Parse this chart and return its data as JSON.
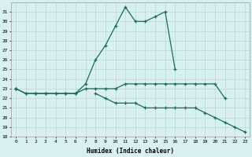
{
  "x": [
    0,
    1,
    2,
    3,
    4,
    5,
    6,
    7,
    8,
    9,
    10,
    11,
    12,
    13,
    14,
    15,
    16,
    17,
    18,
    19,
    20,
    21,
    22,
    23
  ],
  "line_top": [
    23,
    22.5,
    22.5,
    22.5,
    22.5,
    22.5,
    22.5,
    23.5,
    26,
    27.5,
    29.5,
    31.5,
    30,
    30,
    30.5,
    31,
    25,
    null,
    null,
    null,
    null,
    null,
    null,
    null
  ],
  "line_mid": [
    23,
    22.5,
    22.5,
    22.5,
    22.5,
    22.5,
    22.5,
    23,
    23,
    23,
    23,
    23.5,
    23.5,
    23.5,
    23.5,
    23.5,
    23.5,
    23.5,
    23.5,
    23.5,
    23.5,
    22,
    null,
    null
  ],
  "line_bot": [
    23,
    null,
    null,
    null,
    null,
    null,
    null,
    null,
    22.5,
    22,
    21.5,
    21.5,
    21.5,
    21,
    21,
    21,
    21,
    21,
    21,
    20.5,
    20,
    19.5,
    19,
    18.5
  ],
  "markers_top_x": [
    0,
    1,
    2,
    3,
    4,
    7,
    8,
    9,
    10,
    11,
    12,
    13,
    14,
    15,
    16
  ],
  "markers_mid_x": [
    0,
    1,
    2,
    3,
    4,
    7,
    8,
    9,
    10,
    17,
    18,
    19,
    20,
    21
  ],
  "markers_bot_x": [
    0,
    8,
    9,
    10,
    12,
    14,
    16,
    18,
    20,
    21,
    22,
    23
  ],
  "line_color": "#1a6b5a",
  "bg_color": "#d8f0f0",
  "grid_color": "#b8d8d8",
  "xlabel": "Humidex (Indice chaleur)",
  "ylim": [
    18,
    32
  ],
  "xlim": [
    -0.5,
    23.5
  ],
  "yticks": [
    18,
    19,
    20,
    21,
    22,
    23,
    24,
    25,
    26,
    27,
    28,
    29,
    30,
    31
  ],
  "xticks": [
    0,
    1,
    2,
    3,
    4,
    5,
    6,
    7,
    8,
    9,
    10,
    11,
    12,
    13,
    14,
    15,
    16,
    17,
    18,
    19,
    20,
    21,
    22,
    23
  ]
}
